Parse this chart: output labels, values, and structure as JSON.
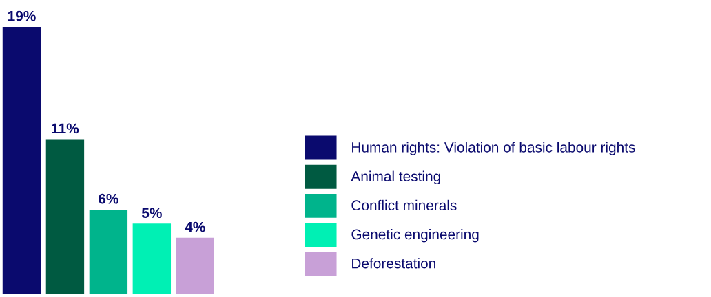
{
  "chart_data": {
    "type": "bar",
    "categories": [
      null
    ],
    "series": [
      {
        "name": "Human rights: Violation of basic labour rights",
        "color": "#0a0a6e",
        "values": [
          19
        ],
        "value_labels": [
          "19%"
        ]
      },
      {
        "name": "Animal testing",
        "color": "#005a41",
        "values": [
          11
        ],
        "value_labels": [
          "11%"
        ]
      },
      {
        "name": "Conflict minerals",
        "color": "#00b48c",
        "values": [
          6
        ],
        "value_labels": [
          "6%"
        ]
      },
      {
        "name": "Genetic engineering",
        "color": "#00f0b4",
        "values": [
          5
        ],
        "value_labels": [
          "5%"
        ]
      },
      {
        "name": "Deforestation",
        "color": "#c8a0d7",
        "values": [
          4
        ],
        "value_labels": [
          "4%"
        ]
      }
    ],
    "tick_labels": false,
    "legend": "right",
    "grid": false
  }
}
